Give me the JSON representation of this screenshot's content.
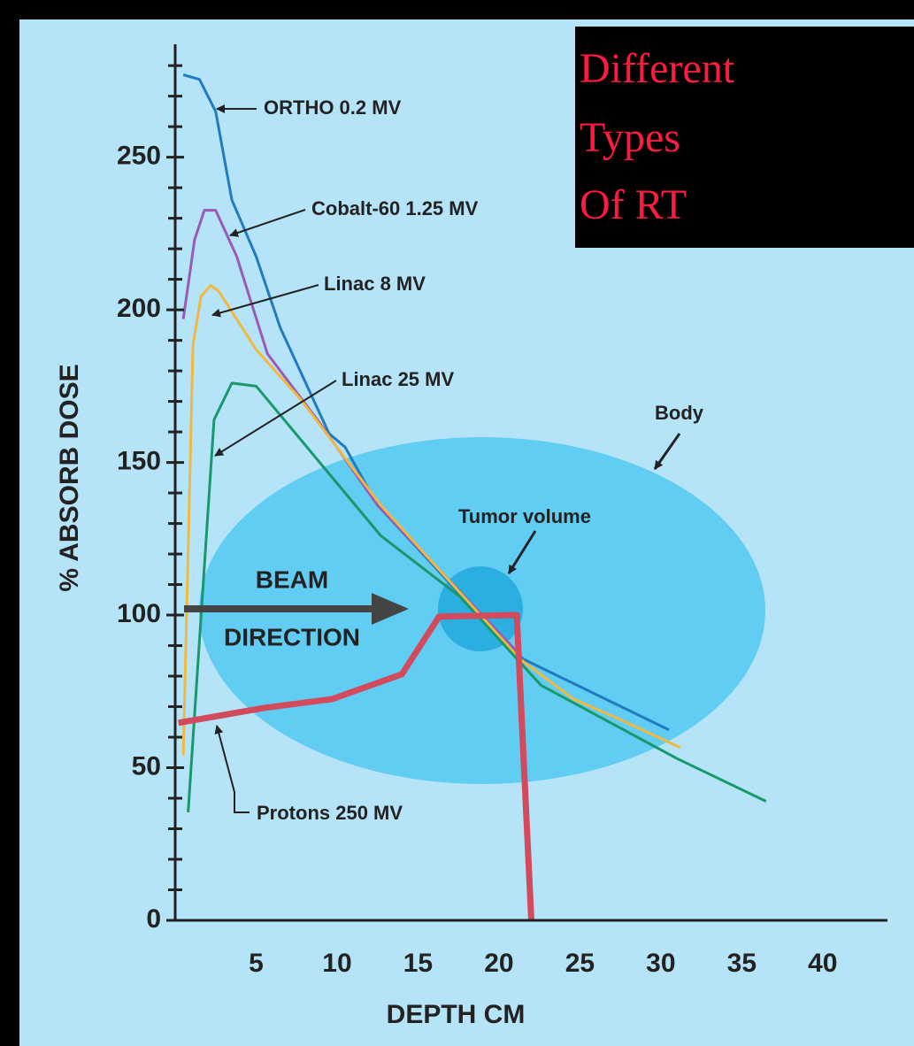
{
  "chart_data": {
    "type": "line",
    "title_lines": [
      "Different",
      "Types",
      "Of RT"
    ],
    "xlabel": "DEPTH CM",
    "ylabel": "% ABSORB DOSE",
    "xlim": [
      0,
      44
    ],
    "xticks": [
      5,
      10,
      15,
      20,
      25,
      30,
      35,
      40
    ],
    "ylim": [
      0,
      287
    ],
    "yticks": [
      0,
      50,
      100,
      150,
      200,
      250
    ],
    "y_minor_ticks": [
      10,
      20,
      30,
      40,
      60,
      70,
      80,
      90,
      110,
      120,
      130,
      140,
      160,
      170,
      180,
      190,
      210,
      220,
      230,
      240,
      260,
      270,
      280
    ],
    "series": [
      {
        "name": "ORTHO  0.2 MV",
        "color": "#1f7cc0",
        "x": [
          0.5,
          1.5,
          2.5,
          3.5,
          5,
          6.5,
          9.5,
          10.5,
          12.5,
          16,
          19,
          21.5,
          30.5
        ],
        "values": [
          277,
          275.5,
          265,
          236,
          217.5,
          194,
          159.5,
          155,
          136,
          116,
          98.6,
          85.6,
          62.4
        ]
      },
      {
        "name": "Cobalt-60  1.25 MV",
        "color": "#9a5ab8",
        "x": [
          0.5,
          1.2,
          1.8,
          2.5,
          3.8,
          5.7,
          9,
          12.5,
          21.3
        ],
        "values": [
          197,
          223,
          232.6,
          232.6,
          217.5,
          185.6,
          162.4,
          136,
          87
        ]
      },
      {
        "name": "Linac  8 MV",
        "color": "#f0b840",
        "x": [
          0.5,
          1.1,
          1.6,
          2.2,
          2.7,
          5,
          7.7,
          12.7,
          21.3,
          24.6,
          27.4,
          31.2
        ],
        "values": [
          54,
          188.5,
          204.5,
          208,
          206,
          187,
          171,
          136,
          85.6,
          72.5,
          66,
          56.6
        ]
      },
      {
        "name": "Linac  25 MV",
        "color": "#17996b",
        "x": [
          0.8,
          2.4,
          3.5,
          5,
          12.7,
          17.6,
          22.6,
          31,
          36.5
        ],
        "values": [
          35.4,
          164,
          176,
          175,
          126,
          106,
          77,
          53,
          39
        ]
      },
      {
        "name": "Protons  250 MV",
        "color": "#d24a5c",
        "x": [
          0.2,
          5.5,
          9.7,
          14,
          16.3,
          21.1,
          22
        ],
        "values": [
          64.7,
          69.6,
          72.5,
          80.6,
          99.5,
          100,
          0
        ]
      }
    ],
    "annotations": [
      "Body",
      "Tumor volume",
      "BEAM",
      "DIRECTION"
    ]
  }
}
